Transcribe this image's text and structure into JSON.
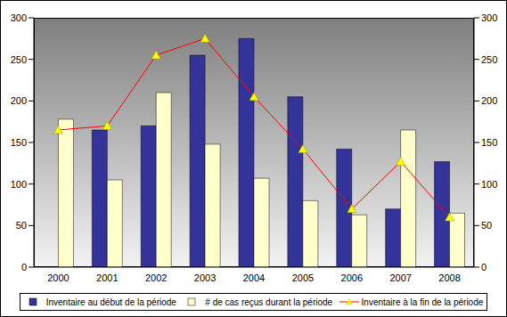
{
  "chart_data": {
    "type": "bar",
    "categories": [
      "2000",
      "2001",
      "2002",
      "2003",
      "2004",
      "2005",
      "2006",
      "2007",
      "2008"
    ],
    "series": [
      {
        "name": "Inventaire au début de la période",
        "type": "bar",
        "color": "#333399",
        "values": [
          null,
          165,
          170,
          255,
          275,
          205,
          142,
          70,
          127
        ]
      },
      {
        "name": "# de cas reçus durant la période",
        "type": "bar",
        "color": "#FFFFCC",
        "values": [
          178,
          105,
          210,
          148,
          107,
          80,
          63,
          165,
          65
        ]
      },
      {
        "name": "Inventaire à la fin de la période",
        "type": "line",
        "color": "#FF0000",
        "marker": "triangle",
        "axis": "y2",
        "values": [
          165,
          170,
          255,
          275,
          205,
          142,
          70,
          127,
          60
        ]
      }
    ],
    "ylim": [
      0,
      300
    ],
    "yticks": [
      0,
      50,
      100,
      150,
      200,
      250,
      300
    ],
    "y2lim": [
      0,
      300
    ],
    "y2ticks": [
      0,
      50,
      100,
      150,
      200,
      250,
      300
    ],
    "grid": false
  }
}
